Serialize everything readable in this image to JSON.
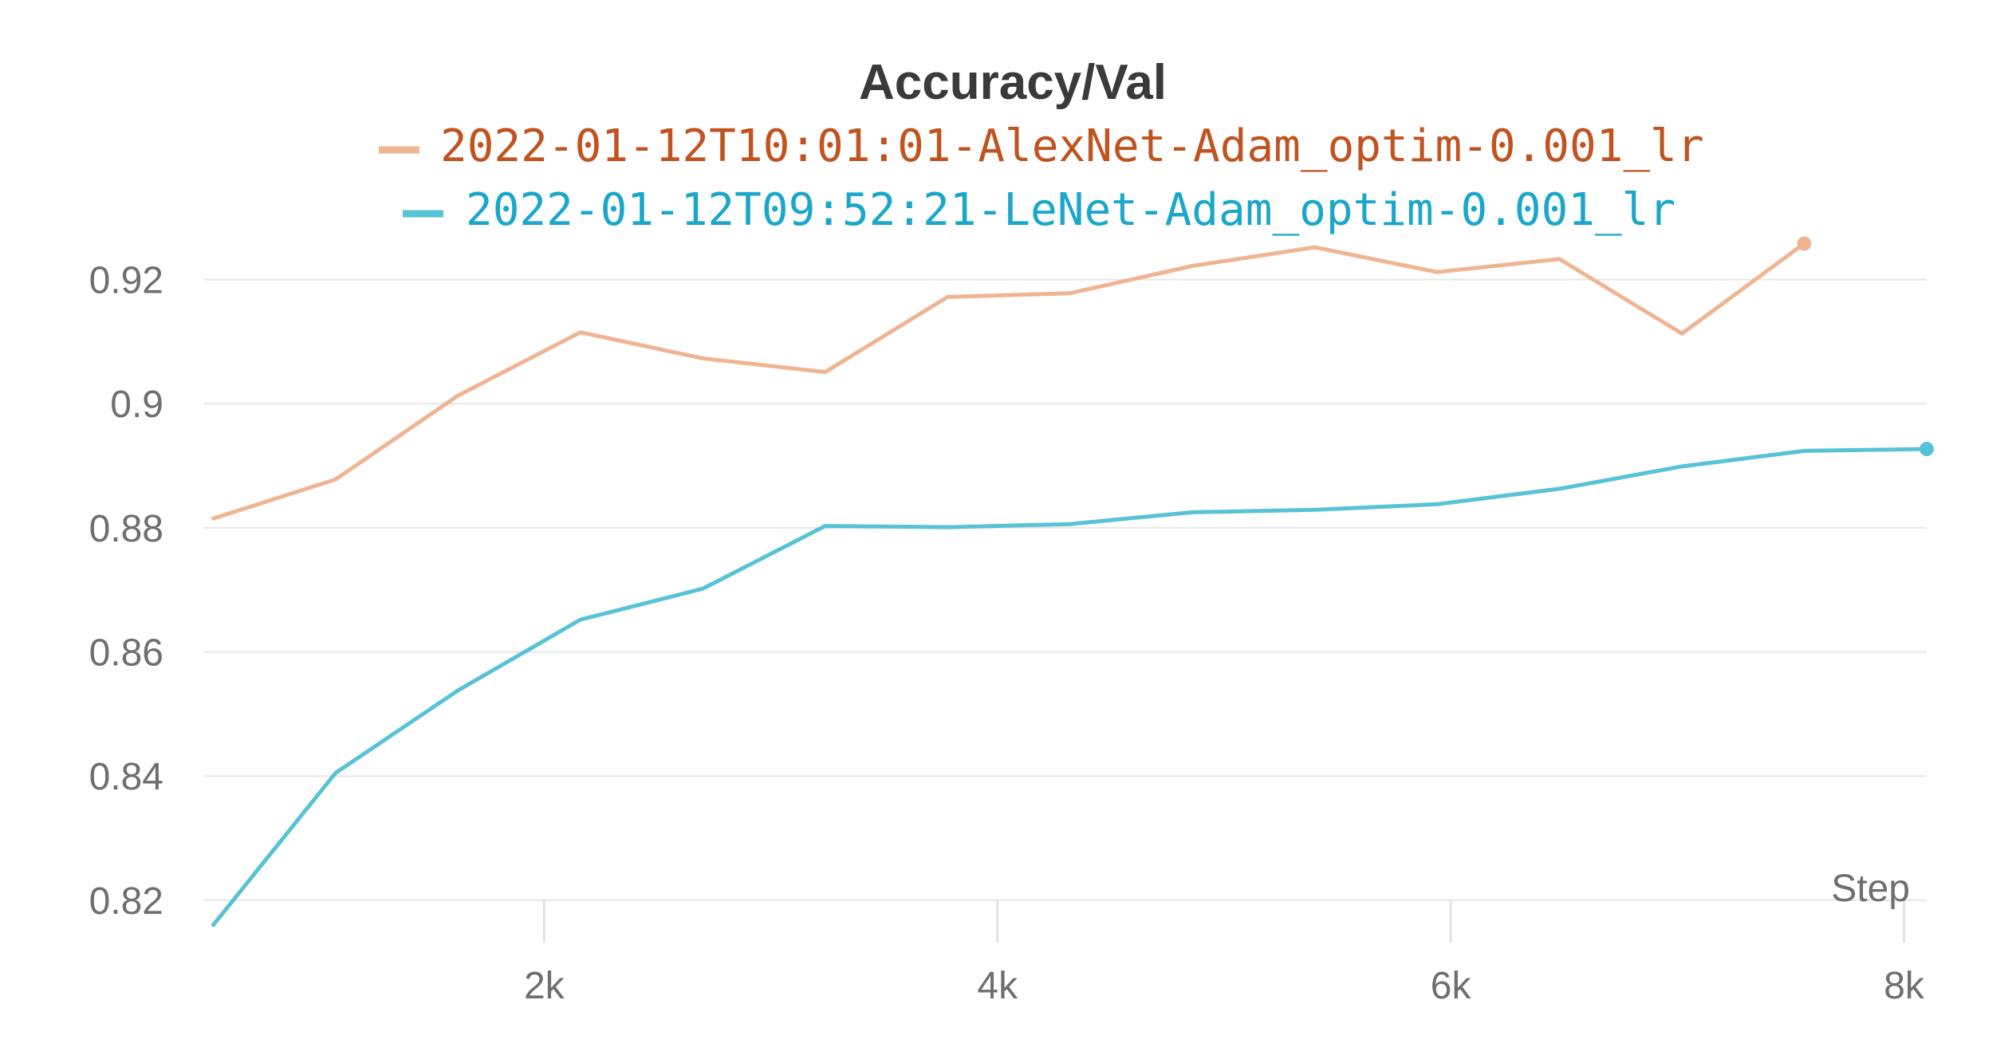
{
  "chart_data": {
    "type": "line",
    "title": "Accuracy/Val",
    "xlabel": "Step",
    "ylabel": "",
    "xlim": [
      500,
      8100
    ],
    "ylim": [
      0.816,
      0.9265
    ],
    "y_ticks": [
      0.82,
      0.84,
      0.86,
      0.88,
      0.9,
      0.92
    ],
    "y_tick_labels": [
      "0.82",
      "0.84",
      "0.86",
      "0.88",
      "0.9",
      "0.92"
    ],
    "x_ticks": [
      2000,
      4000,
      6000,
      8000
    ],
    "x_tick_labels": [
      "2k",
      "4k",
      "6k",
      "8k"
    ],
    "grid": true,
    "legend_position": "top",
    "series": [
      {
        "name": "2022-01-12T10:01:01-AlexNet-Adam_optim-0.001_lr",
        "color": "#efb492",
        "text_color": "#c0531f",
        "x": [
          540,
          1080,
          1620,
          2160,
          2700,
          3240,
          3780,
          4320,
          4860,
          5400,
          5940,
          6480,
          7020,
          7560
        ],
        "y": [
          0.8815,
          0.8878,
          0.9013,
          0.9115,
          0.9073,
          0.9051,
          0.9172,
          0.9178,
          0.9222,
          0.9252,
          0.9212,
          0.9233,
          0.9113,
          0.9258
        ]
      },
      {
        "name": "2022-01-12T09:52:21-LeNet-Adam_optim-0.001_lr",
        "color": "#58c2d6",
        "text_color": "#1aa7c9",
        "x": [
          540,
          1080,
          1620,
          2160,
          2700,
          3240,
          3780,
          4320,
          4860,
          5400,
          5940,
          6480,
          7020,
          7560,
          8100
        ],
        "y": [
          0.816,
          0.8405,
          0.8538,
          0.8652,
          0.8702,
          0.8803,
          0.8801,
          0.8806,
          0.8825,
          0.8829,
          0.8838,
          0.8863,
          0.8899,
          0.8924,
          0.8927
        ]
      }
    ]
  }
}
